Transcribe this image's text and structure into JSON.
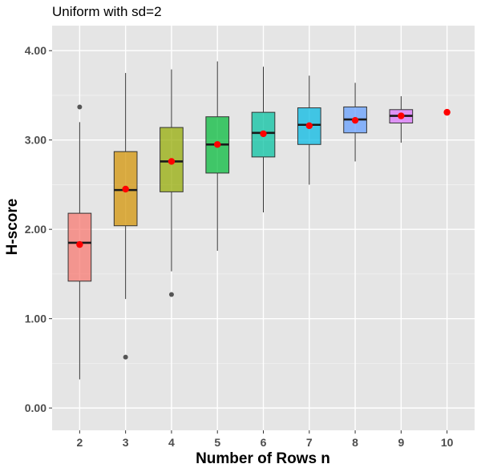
{
  "chart_data": {
    "type": "boxplot",
    "title": "Uniform with sd=2",
    "xlabel": "Number of Rows n",
    "ylabel": "H-score",
    "ylim": [
      -0.25,
      4.28
    ],
    "yticks": [
      0.0,
      1.0,
      2.0,
      3.0,
      4.0
    ],
    "ytick_labels": [
      "0.00",
      "1.00",
      "2.00",
      "3.00",
      "4.00"
    ],
    "categories": [
      "2",
      "3",
      "4",
      "5",
      "6",
      "7",
      "8",
      "9",
      "10"
    ],
    "colors": [
      "#F8766D",
      "#D39200",
      "#93AA00",
      "#00BA38",
      "#00C19F",
      "#00B9E3",
      "#619CFF",
      "#DB72FB",
      "#FF61C3"
    ],
    "grid": true,
    "boxes": [
      {
        "n": "2",
        "whisker_low": 0.32,
        "q1": 1.42,
        "median": 1.85,
        "q3": 2.18,
        "whisker_high": 3.2,
        "mean": 1.83,
        "outliers": [
          3.37
        ]
      },
      {
        "n": "3",
        "whisker_low": 1.22,
        "q1": 2.04,
        "median": 2.44,
        "q3": 2.87,
        "whisker_high": 3.75,
        "mean": 2.45,
        "outliers": [
          0.57
        ]
      },
      {
        "n": "4",
        "whisker_low": 1.53,
        "q1": 2.42,
        "median": 2.76,
        "q3": 3.14,
        "whisker_high": 3.79,
        "mean": 2.76,
        "outliers": [
          1.27
        ]
      },
      {
        "n": "5",
        "whisker_low": 1.76,
        "q1": 2.63,
        "median": 2.95,
        "q3": 3.26,
        "whisker_high": 3.88,
        "mean": 2.95,
        "outliers": []
      },
      {
        "n": "6",
        "whisker_low": 2.19,
        "q1": 2.81,
        "median": 3.08,
        "q3": 3.31,
        "whisker_high": 3.82,
        "mean": 3.07,
        "outliers": []
      },
      {
        "n": "7",
        "whisker_low": 2.5,
        "q1": 2.95,
        "median": 3.17,
        "q3": 3.36,
        "whisker_high": 3.72,
        "mean": 3.16,
        "outliers": []
      },
      {
        "n": "8",
        "whisker_low": 2.76,
        "q1": 3.08,
        "median": 3.23,
        "q3": 3.37,
        "whisker_high": 3.64,
        "mean": 3.22,
        "outliers": []
      },
      {
        "n": "9",
        "whisker_low": 2.97,
        "q1": 3.19,
        "median": 3.27,
        "q3": 3.34,
        "whisker_high": 3.49,
        "mean": 3.27,
        "outliers": []
      },
      {
        "n": "10",
        "whisker_low": 3.31,
        "q1": 3.31,
        "median": 3.31,
        "q3": 3.31,
        "whisker_high": 3.31,
        "mean": 3.31,
        "outliers": []
      }
    ]
  }
}
